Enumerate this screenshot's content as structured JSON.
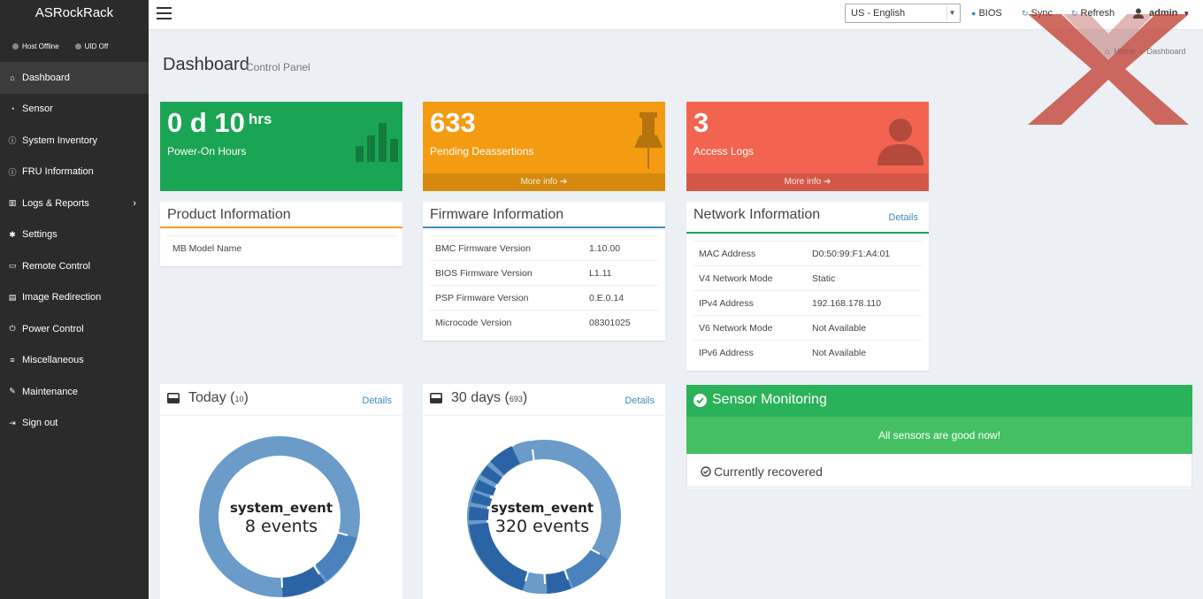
{
  "brand": "ASRockRack",
  "status": {
    "host": "Host Offline",
    "uid": "UID Off"
  },
  "nav": [
    {
      "label": "Dashboard",
      "icon": "home-icon"
    },
    {
      "label": "Sensor",
      "icon": "dashboard-gauge-icon"
    },
    {
      "label": "System Inventory",
      "icon": "info-circle-icon"
    },
    {
      "label": "FRU Information",
      "icon": "info-circle-icon"
    },
    {
      "label": "Logs & Reports",
      "icon": "bar-chart-icon"
    },
    {
      "label": "Settings",
      "icon": "gear-icon"
    },
    {
      "label": "Remote Control",
      "icon": "monitor-icon"
    },
    {
      "label": "Image Redirection",
      "icon": "hdd-icon"
    },
    {
      "label": "Power Control",
      "icon": "power-icon"
    },
    {
      "label": "Miscellaneous",
      "icon": "list-icon"
    },
    {
      "label": "Maintenance",
      "icon": "wrench-icon"
    },
    {
      "label": "Sign out",
      "icon": "sign-out-icon"
    }
  ],
  "topbar": {
    "language": "US - English",
    "bios": "BIOS",
    "sync": "Sync",
    "refresh": "Refresh",
    "user": "admin"
  },
  "header": {
    "title": "Dashboard",
    "subtitle": "Control Panel",
    "crumb_home": "Home",
    "crumb_current": "Dashboard"
  },
  "tiles": {
    "hours": {
      "value": "0 d 10",
      "unit": "hrs",
      "label": "Power-On Hours"
    },
    "deassert": {
      "value": "633",
      "label": "Pending Deassertions",
      "more": "More info"
    },
    "access": {
      "value": "3",
      "label": "Access Logs",
      "more": "More info"
    }
  },
  "product": {
    "title": "Product Information",
    "rows": [
      {
        "k": "MB Model Name",
        "v": ""
      }
    ]
  },
  "firmware": {
    "title": "Firmware Information",
    "rows": [
      {
        "k": "BMC Firmware Version",
        "v": "1.10.00"
      },
      {
        "k": "BIOS Firmware Version",
        "v": "L1.11"
      },
      {
        "k": "PSP Firmware Version",
        "v": "0.E.0.14"
      },
      {
        "k": "Microcode Version",
        "v": "08301025"
      }
    ]
  },
  "network": {
    "title": "Network Information",
    "details": "Details",
    "rows": [
      {
        "k": "MAC Address",
        "v": "D0:50:99:F1:A4:01"
      },
      {
        "k": "V4 Network Mode",
        "v": "Static"
      },
      {
        "k": "IPv4 Address",
        "v": "192.168.178.110"
      },
      {
        "k": "V6 Network Mode",
        "v": "Not Available"
      },
      {
        "k": "IPv6 Address",
        "v": "Not Available"
      }
    ]
  },
  "today": {
    "title": "Today",
    "count": "10",
    "details": "Details",
    "center_name": "system_event",
    "center_value": "8 events"
  },
  "month": {
    "title": "30 days",
    "count": "693",
    "details": "Details",
    "center_name": "system_event",
    "center_value": "320 events"
  },
  "sensor": {
    "title": "Sensor Monitoring",
    "message": "All sensors are good now!",
    "recovered": "Currently recovered"
  },
  "colors": {
    "sidebar": "#2b2b2b",
    "green": "#1aa554",
    "orange": "#f39c12",
    "red": "#f26450",
    "donut_light": "#6a9bc9",
    "donut_dark": "#2a64a6"
  }
}
